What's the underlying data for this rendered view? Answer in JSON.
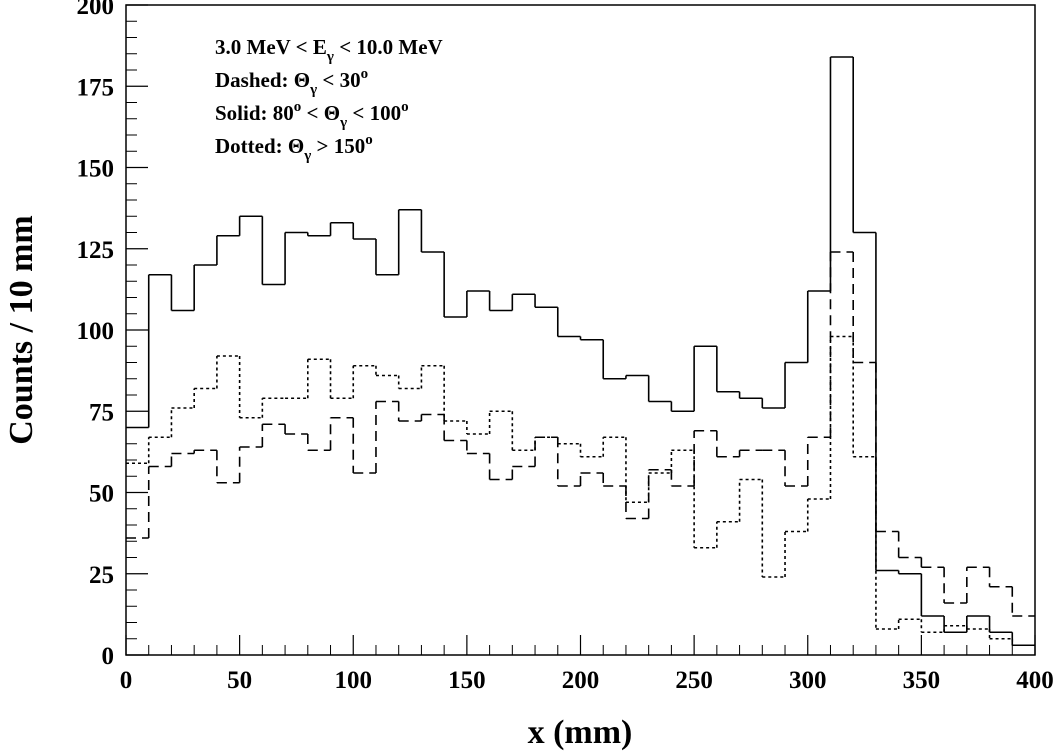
{
  "chart_data": {
    "type": "histogram",
    "xlabel": "x (mm)",
    "ylabel": "Counts / 10 mm",
    "bins": [
      0,
      10,
      20,
      30,
      40,
      50,
      60,
      70,
      80,
      90,
      100,
      110,
      120,
      130,
      140,
      150,
      160,
      170,
      180,
      190,
      200,
      210,
      220,
      230,
      240,
      250,
      260,
      270,
      280,
      290,
      300,
      310,
      320,
      330,
      340,
      350,
      360,
      370,
      380,
      390,
      400
    ],
    "series": [
      {
        "style": "solid",
        "color": "#000000",
        "values": [
          70,
          117,
          106,
          120,
          129,
          135,
          114,
          130,
          129,
          133,
          128,
          117,
          137,
          124,
          104,
          112,
          106,
          111,
          107,
          98,
          97,
          85,
          86,
          78,
          75,
          95,
          81,
          79,
          76,
          90,
          112,
          184,
          130,
          26,
          25,
          12,
          7,
          12,
          7,
          3
        ]
      },
      {
        "style": "dashed",
        "color": "#000000",
        "values": [
          36,
          58,
          62,
          63,
          53,
          64,
          71,
          68,
          63,
          73,
          56,
          78,
          72,
          74,
          66,
          62,
          54,
          58,
          67,
          52,
          56,
          52,
          42,
          57,
          52,
          69,
          61,
          63,
          63,
          52,
          67,
          124,
          90,
          38,
          30,
          27,
          16,
          27,
          21,
          12
        ]
      },
      {
        "style": "dotted",
        "color": "#000000",
        "values": [
          59,
          67,
          76,
          82,
          92,
          73,
          79,
          79,
          91,
          79,
          89,
          86,
          82,
          89,
          72,
          68,
          75,
          63,
          67,
          65,
          61,
          67,
          47,
          56,
          63,
          33,
          41,
          54,
          24,
          38,
          48,
          98,
          61,
          8,
          11,
          7,
          9,
          8,
          5,
          3
        ]
      }
    ],
    "annotations": [
      [
        {
          "text": "3.0 MeV < E"
        },
        {
          "text": "γ",
          "shift": "sub"
        },
        {
          "text": " < 10.0 MeV"
        }
      ],
      [
        {
          "text": "Dashed: Θ"
        },
        {
          "text": "γ",
          "shift": "sub"
        },
        {
          "text": " < 30"
        },
        {
          "text": "o",
          "shift": "sup"
        }
      ],
      [
        {
          "text": "Solid: 80"
        },
        {
          "text": "o",
          "shift": "sup"
        },
        {
          "text": " < Θ"
        },
        {
          "text": "γ",
          "shift": "sub"
        },
        {
          "text": " < 100"
        },
        {
          "text": "o",
          "shift": "sup"
        }
      ],
      [
        {
          "text": "Dotted: Θ"
        },
        {
          "text": "γ",
          "shift": "sub"
        },
        {
          "text": " > 150"
        },
        {
          "text": "o",
          "shift": "sup"
        }
      ]
    ],
    "xlim": [
      0,
      400
    ],
    "xticks": [
      0,
      50,
      100,
      150,
      200,
      250,
      300,
      350,
      400
    ],
    "ylim": [
      0,
      200
    ],
    "yticks": [
      0,
      25,
      50,
      75,
      100,
      125,
      150,
      175,
      200
    ]
  }
}
